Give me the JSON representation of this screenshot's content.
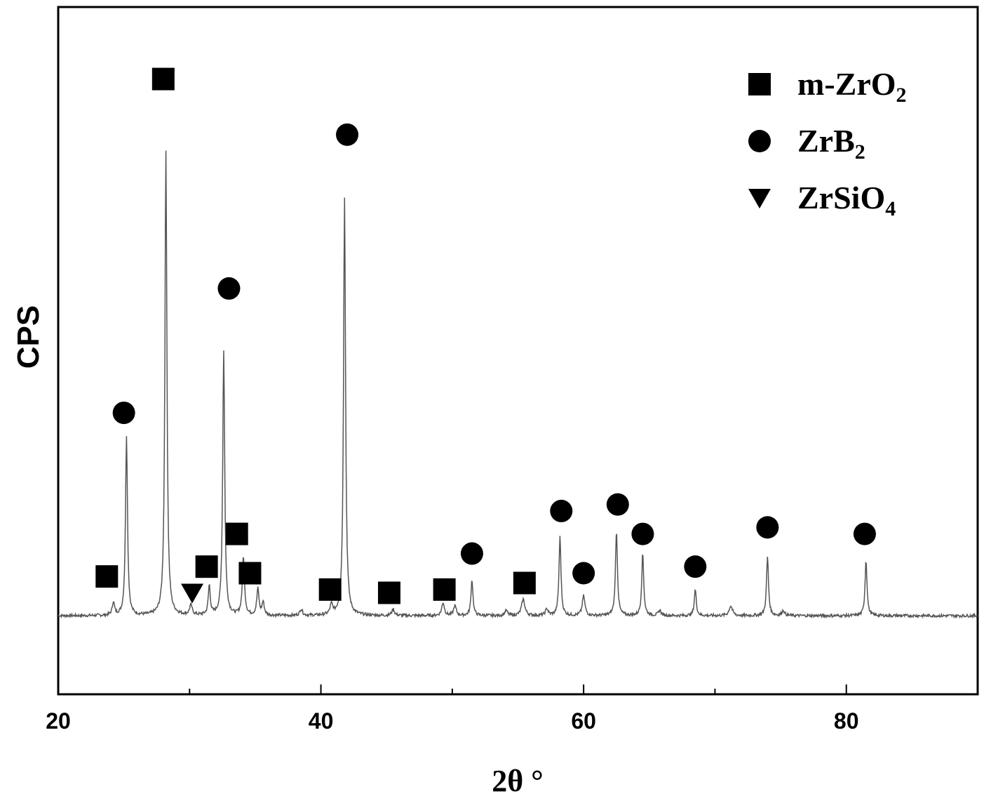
{
  "chart_data": {
    "type": "line",
    "title": "",
    "xlabel": "2θ °",
    "ylabel": "CPS",
    "xlim": [
      20,
      90
    ],
    "ylim": [
      -5,
      100
    ],
    "x_ticks": [
      20,
      40,
      60,
      80
    ],
    "y_ticks_shown": false,
    "grid": false,
    "legend_position": "top-right",
    "baseline": 7,
    "peaks": [
      {
        "x": 24.2,
        "height": 2.0,
        "width": 0.1
      },
      {
        "x": 25.2,
        "height": 27.5,
        "width": 0.09
      },
      {
        "x": 28.2,
        "height": 71.0,
        "width": 0.09
      },
      {
        "x": 30.1,
        "height": 1.5,
        "width": 0.12
      },
      {
        "x": 31.5,
        "height": 4.5,
        "width": 0.09
      },
      {
        "x": 32.6,
        "height": 40.5,
        "width": 0.09
      },
      {
        "x": 34.1,
        "height": 9.0,
        "width": 0.1
      },
      {
        "x": 35.2,
        "height": 4.0,
        "width": 0.1
      },
      {
        "x": 35.6,
        "height": 2.0,
        "width": 0.1
      },
      {
        "x": 38.5,
        "height": 1.0,
        "width": 0.12
      },
      {
        "x": 40.8,
        "height": 1.5,
        "width": 0.12
      },
      {
        "x": 41.8,
        "height": 64.0,
        "width": 0.09
      },
      {
        "x": 45.5,
        "height": 1.0,
        "width": 0.12
      },
      {
        "x": 49.3,
        "height": 2.0,
        "width": 0.12
      },
      {
        "x": 50.2,
        "height": 1.5,
        "width": 0.12
      },
      {
        "x": 51.5,
        "height": 5.5,
        "width": 0.09
      },
      {
        "x": 54.1,
        "height": 0.8,
        "width": 0.12
      },
      {
        "x": 55.4,
        "height": 2.5,
        "width": 0.15
      },
      {
        "x": 57.2,
        "height": 1.0,
        "width": 0.12
      },
      {
        "x": 58.2,
        "height": 12.0,
        "width": 0.09
      },
      {
        "x": 60.0,
        "height": 3.0,
        "width": 0.12
      },
      {
        "x": 62.5,
        "height": 13.0,
        "width": 0.09
      },
      {
        "x": 64.5,
        "height": 9.5,
        "width": 0.09
      },
      {
        "x": 65.8,
        "height": 0.8,
        "width": 0.12
      },
      {
        "x": 68.5,
        "height": 4.0,
        "width": 0.09
      },
      {
        "x": 71.2,
        "height": 1.5,
        "width": 0.15
      },
      {
        "x": 74.0,
        "height": 9.0,
        "width": 0.09
      },
      {
        "x": 75.2,
        "height": 0.8,
        "width": 0.12
      },
      {
        "x": 81.5,
        "height": 8.5,
        "width": 0.09
      }
    ],
    "markers": [
      {
        "phase": "m-ZrO2",
        "x": 23.7,
        "y": 13.0
      },
      {
        "phase": "m-ZrO2",
        "x": 28.0,
        "y": 89.0
      },
      {
        "phase": "m-ZrO2",
        "x": 31.3,
        "y": 14.5
      },
      {
        "phase": "m-ZrO2",
        "x": 33.6,
        "y": 19.5
      },
      {
        "phase": "m-ZrO2",
        "x": 34.6,
        "y": 13.5
      },
      {
        "phase": "m-ZrO2",
        "x": 40.7,
        "y": 11.0
      },
      {
        "phase": "m-ZrO2",
        "x": 45.2,
        "y": 10.5
      },
      {
        "phase": "m-ZrO2",
        "x": 49.4,
        "y": 11.0
      },
      {
        "phase": "m-ZrO2",
        "x": 55.5,
        "y": 12.0
      },
      {
        "phase": "ZrB2",
        "x": 25.0,
        "y": 38.0
      },
      {
        "phase": "ZrB2",
        "x": 33.0,
        "y": 57.0
      },
      {
        "phase": "ZrB2",
        "x": 42.0,
        "y": 80.5
      },
      {
        "phase": "ZrB2",
        "x": 51.5,
        "y": 16.5
      },
      {
        "phase": "ZrB2",
        "x": 58.3,
        "y": 23.0
      },
      {
        "phase": "ZrB2",
        "x": 60.0,
        "y": 13.5
      },
      {
        "phase": "ZrB2",
        "x": 62.6,
        "y": 24.0
      },
      {
        "phase": "ZrB2",
        "x": 64.5,
        "y": 19.5
      },
      {
        "phase": "ZrB2",
        "x": 68.5,
        "y": 14.5
      },
      {
        "phase": "ZrB2",
        "x": 74.0,
        "y": 20.5
      },
      {
        "phase": "ZrB2",
        "x": 81.4,
        "y": 19.5
      },
      {
        "phase": "ZrSiO4",
        "x": 30.2,
        "y": 10.5
      }
    ],
    "legend": [
      {
        "phase": "m-ZrO2",
        "marker": "square",
        "label": "m-ZrO",
        "sub": "2"
      },
      {
        "phase": "ZrB2",
        "marker": "circle",
        "label": "ZrB",
        "sub": "2"
      },
      {
        "phase": "ZrSiO4",
        "marker": "triangle-down",
        "label": "ZrSiO",
        "sub": "4"
      }
    ]
  },
  "colors": {
    "line": "#555555",
    "marker": "#000000",
    "axes": "#000000"
  }
}
